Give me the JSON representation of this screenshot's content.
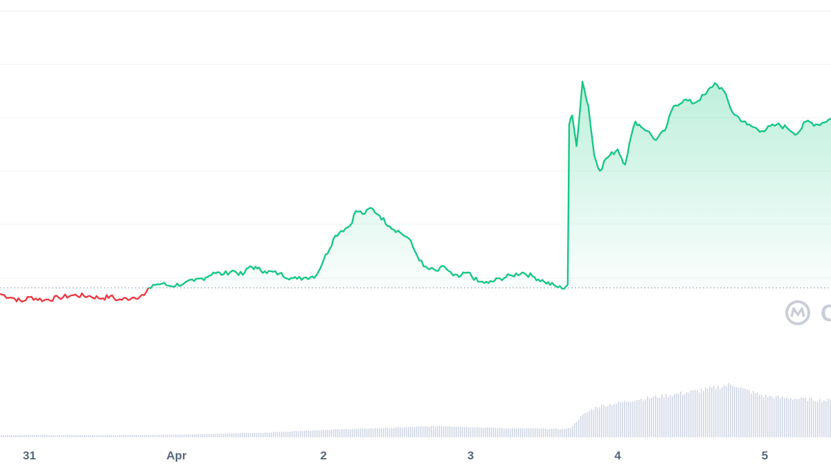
{
  "chart_data": {
    "type": "line",
    "grid": true,
    "legend": "none",
    "colors": {
      "up": "#16c784",
      "down": "#ea3943",
      "volume": "#cfd6e4",
      "baseline": "#a6b0c3",
      "watermark": "#c9ced6"
    },
    "x_ticks": [
      {
        "label": "31",
        "t": 0.0
      },
      {
        "label": "Apr",
        "t": 1.0
      },
      {
        "label": "2",
        "t": 2.0
      },
      {
        "label": "3",
        "t": 3.0
      },
      {
        "label": "4",
        "t": 4.0
      },
      {
        "label": "5",
        "t": 5.0
      }
    ],
    "x_range": [
      -0.2,
      5.45
    ],
    "y_range": [
      0,
      100
    ],
    "baseline_value": 20,
    "watermark": {
      "icon": "coinmarketcap-logo-icon",
      "text": "C"
    },
    "price_points": [
      [
        -0.2,
        18.0
      ],
      [
        -0.1,
        16.5
      ],
      [
        -0.05,
        15.5
      ],
      [
        0.0,
        17.0
      ],
      [
        0.1,
        16.0
      ],
      [
        0.2,
        16.8
      ],
      [
        0.3,
        17.6
      ],
      [
        0.4,
        17.3
      ],
      [
        0.5,
        16.6
      ],
      [
        0.55,
        17.3
      ],
      [
        0.6,
        16.0
      ],
      [
        0.7,
        16.8
      ],
      [
        0.78,
        17.6
      ],
      [
        0.84,
        21.0
      ],
      [
        0.9,
        21.3
      ],
      [
        0.96,
        20.6
      ],
      [
        1.05,
        21.4
      ],
      [
        1.12,
        22.2
      ],
      [
        1.2,
        23.4
      ],
      [
        1.25,
        25.0
      ],
      [
        1.32,
        24.4
      ],
      [
        1.38,
        25.6
      ],
      [
        1.45,
        24.2
      ],
      [
        1.5,
        27.0
      ],
      [
        1.55,
        26.2
      ],
      [
        1.6,
        25.4
      ],
      [
        1.7,
        24.6
      ],
      [
        1.78,
        23.2
      ],
      [
        1.82,
        22.9
      ],
      [
        1.88,
        23.4
      ],
      [
        1.95,
        24.0
      ],
      [
        2.0,
        29.0
      ],
      [
        2.08,
        37.0
      ],
      [
        2.12,
        38.5
      ],
      [
        2.18,
        40.2
      ],
      [
        2.22,
        45.0
      ],
      [
        2.28,
        44.0
      ],
      [
        2.32,
        46.0
      ],
      [
        2.38,
        43.5
      ],
      [
        2.45,
        40.0
      ],
      [
        2.52,
        38.0
      ],
      [
        2.58,
        36.0
      ],
      [
        2.62,
        32.0
      ],
      [
        2.68,
        27.0
      ],
      [
        2.72,
        26.0
      ],
      [
        2.78,
        25.5
      ],
      [
        2.82,
        27.0
      ],
      [
        2.88,
        24.0
      ],
      [
        2.92,
        23.5
      ],
      [
        2.98,
        25.0
      ],
      [
        3.05,
        22.0
      ],
      [
        3.12,
        21.5
      ],
      [
        3.2,
        23.0
      ],
      [
        3.28,
        24.0
      ],
      [
        3.35,
        25.0
      ],
      [
        3.42,
        23.8
      ],
      [
        3.5,
        22.0
      ],
      [
        3.58,
        20.5
      ],
      [
        3.62,
        19.8
      ],
      [
        3.66,
        21.0
      ],
      [
        3.67,
        73.0
      ],
      [
        3.69,
        76.0
      ],
      [
        3.72,
        66.0
      ],
      [
        3.76,
        87.0
      ],
      [
        3.8,
        79.0
      ],
      [
        3.84,
        63.0
      ],
      [
        3.88,
        58.0
      ],
      [
        3.92,
        62.0
      ],
      [
        4.0,
        65.0
      ],
      [
        4.05,
        60.0
      ],
      [
        4.08,
        67.0
      ],
      [
        4.12,
        74.0
      ],
      [
        4.2,
        71.0
      ],
      [
        4.26,
        68.0
      ],
      [
        4.32,
        71.0
      ],
      [
        4.38,
        79.0
      ],
      [
        4.45,
        81.0
      ],
      [
        4.52,
        80.0
      ],
      [
        4.6,
        83.0
      ],
      [
        4.66,
        86.5
      ],
      [
        4.72,
        84.0
      ],
      [
        4.78,
        77.0
      ],
      [
        4.88,
        73.0
      ],
      [
        4.98,
        71.0
      ],
      [
        5.08,
        73.0
      ],
      [
        5.15,
        72.0
      ],
      [
        5.22,
        70.0
      ],
      [
        5.28,
        74.0
      ],
      [
        5.36,
        73.0
      ],
      [
        5.45,
        75.0
      ]
    ],
    "volume_points": [
      [
        -0.2,
        3.0
      ],
      [
        0.8,
        3.0
      ],
      [
        1.0,
        3.5
      ],
      [
        1.6,
        6.0
      ],
      [
        2.0,
        10.0
      ],
      [
        2.4,
        12.0
      ],
      [
        2.8,
        15.0
      ],
      [
        3.2,
        12.0
      ],
      [
        3.65,
        11.0
      ],
      [
        3.68,
        13.0
      ],
      [
        3.75,
        28.0
      ],
      [
        3.85,
        40.0
      ],
      [
        4.1,
        49.0
      ],
      [
        4.4,
        57.0
      ],
      [
        4.6,
        63.0
      ],
      [
        4.75,
        69.0
      ],
      [
        4.8,
        69.0
      ],
      [
        4.85,
        63.0
      ],
      [
        5.0,
        54.0
      ],
      [
        5.2,
        51.0
      ],
      [
        5.45,
        48.0
      ]
    ]
  }
}
